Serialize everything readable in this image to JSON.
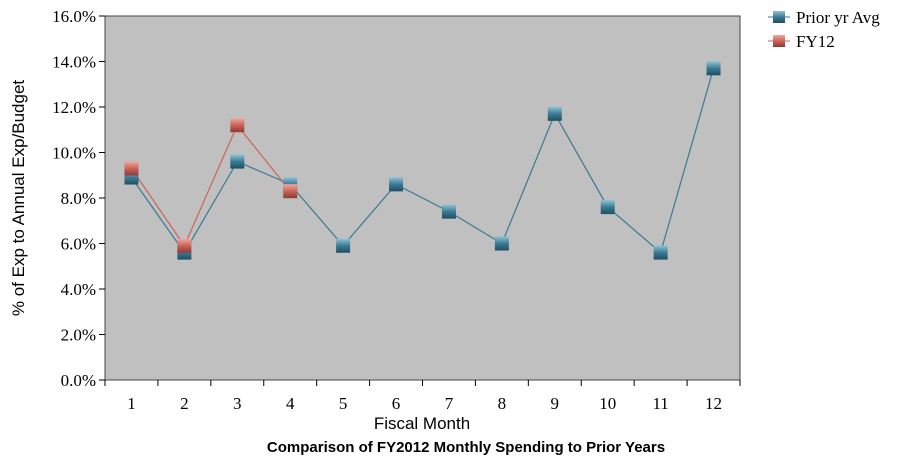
{
  "chart_data": {
    "type": "line",
    "title": "Comparison of FY2012 Monthly Spending to Prior Years",
    "xlabel": "Fiscal Month",
    "ylabel": "% of Exp to Annual Exp/Budget",
    "categories": [
      "1",
      "2",
      "3",
      "4",
      "5",
      "6",
      "7",
      "8",
      "9",
      "10",
      "11",
      "12"
    ],
    "ylim": [
      0,
      16
    ],
    "yticks": [
      "0.0%",
      "2.0%",
      "4.0%",
      "6.0%",
      "8.0%",
      "10.0%",
      "12.0%",
      "14.0%",
      "16.0%"
    ],
    "grid": false,
    "legend_position": "top-right",
    "series": [
      {
        "name": "Prior yr Avg",
        "color": "#3b7a93",
        "values": [
          8.9,
          5.6,
          9.6,
          8.6,
          5.9,
          8.6,
          7.4,
          6.0,
          11.7,
          7.6,
          5.6,
          13.7
        ]
      },
      {
        "name": "FY12",
        "color": "#c9645a",
        "values": [
          9.3,
          5.9,
          11.2,
          8.3,
          null,
          null,
          null,
          null,
          null,
          null,
          null,
          null
        ]
      }
    ],
    "plot_background": "#c0c0c0"
  }
}
